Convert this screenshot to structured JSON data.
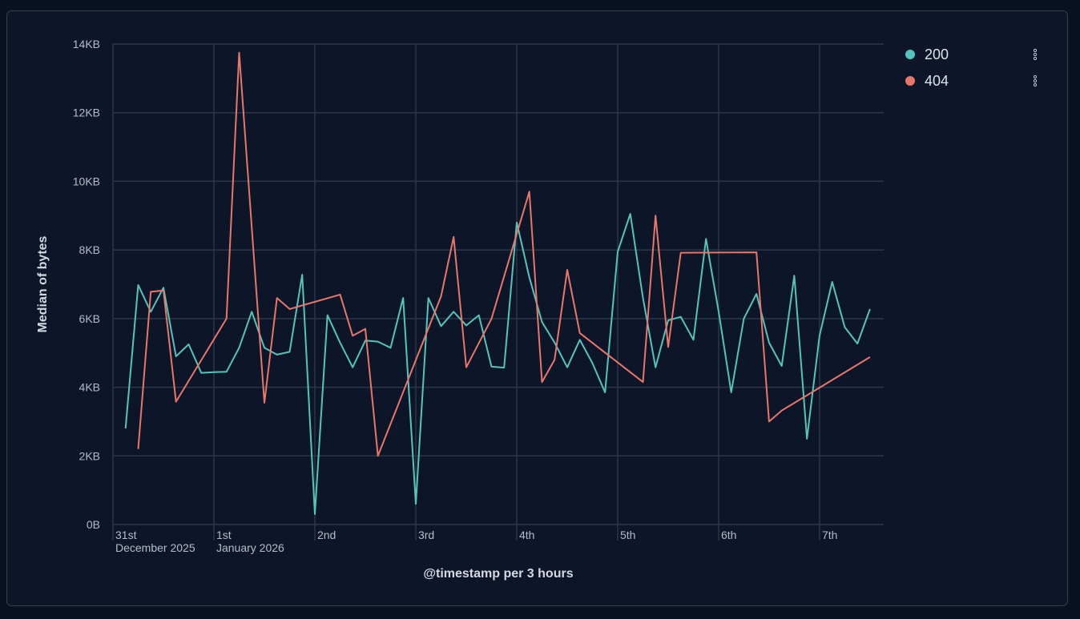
{
  "chart_data": {
    "type": "line",
    "title": "",
    "xlabel": "@timestamp per 3 hours",
    "ylabel": "Median of bytes",
    "y_unit": "KB",
    "ylim": [
      0,
      14
    ],
    "xlim": [
      "2025-12-31T00:00",
      "2026-01-07T15:15"
    ],
    "grid": true,
    "legend_position": "right",
    "y_ticks": [
      {
        "value": 0,
        "label": "0B"
      },
      {
        "value": 2,
        "label": "2KB"
      },
      {
        "value": 4,
        "label": "4KB"
      },
      {
        "value": 6,
        "label": "6KB"
      },
      {
        "value": 8,
        "label": "8KB"
      },
      {
        "value": 10,
        "label": "10KB"
      },
      {
        "value": 12,
        "label": "12KB"
      },
      {
        "value": 14,
        "label": "14KB"
      }
    ],
    "x_ticks": [
      {
        "value": "2025-12-31T00:00",
        "label": "31st",
        "sublabel": "December 2025"
      },
      {
        "value": "2026-01-01T00:00",
        "label": "1st",
        "sublabel": "January 2026"
      },
      {
        "value": "2026-01-02T00:00",
        "label": "2nd"
      },
      {
        "value": "2026-01-03T00:00",
        "label": "3rd"
      },
      {
        "value": "2026-01-04T00:00",
        "label": "4th"
      },
      {
        "value": "2026-01-05T00:00",
        "label": "5th"
      },
      {
        "value": "2026-01-06T00:00",
        "label": "6th"
      },
      {
        "value": "2026-01-07T00:00",
        "label": "7th"
      }
    ],
    "series": [
      {
        "name": "200",
        "color": "#54c4bd",
        "points": [
          [
            "2025-12-31T03:00",
            2.8
          ],
          [
            "2025-12-31T06:00",
            6.98
          ],
          [
            "2025-12-31T09:00",
            6.2
          ],
          [
            "2025-12-31T12:00",
            6.9
          ],
          [
            "2025-12-31T15:00",
            4.9
          ],
          [
            "2025-12-31T18:00",
            5.25
          ],
          [
            "2025-12-31T21:00",
            4.42
          ],
          [
            "2026-01-01T00:00",
            4.44
          ],
          [
            "2026-01-01T03:00",
            4.45
          ],
          [
            "2026-01-01T06:00",
            5.15
          ],
          [
            "2026-01-01T09:00",
            6.2
          ],
          [
            "2026-01-01T12:00",
            5.15
          ],
          [
            "2026-01-01T15:00",
            4.95
          ],
          [
            "2026-01-01T18:00",
            5.03
          ],
          [
            "2026-01-01T21:00",
            7.28
          ],
          [
            "2026-01-02T00:00",
            0.3
          ],
          [
            "2026-01-02T03:00",
            6.1
          ],
          [
            "2026-01-02T06:00",
            5.3
          ],
          [
            "2026-01-02T09:00",
            4.58
          ],
          [
            "2026-01-02T12:00",
            5.36
          ],
          [
            "2026-01-02T15:00",
            5.33
          ],
          [
            "2026-01-02T18:00",
            5.15
          ],
          [
            "2026-01-02T21:00",
            6.6
          ],
          [
            "2026-01-03T00:00",
            0.6
          ],
          [
            "2026-01-03T03:00",
            6.6
          ],
          [
            "2026-01-03T06:00",
            5.78
          ],
          [
            "2026-01-03T09:00",
            6.2
          ],
          [
            "2026-01-03T12:00",
            5.8
          ],
          [
            "2026-01-03T15:00",
            6.1
          ],
          [
            "2026-01-03T18:00",
            4.6
          ],
          [
            "2026-01-03T21:00",
            4.57
          ],
          [
            "2026-01-04T00:00",
            8.8
          ],
          [
            "2026-01-04T03:00",
            7.2
          ],
          [
            "2026-01-04T06:00",
            5.9
          ],
          [
            "2026-01-04T09:00",
            5.3
          ],
          [
            "2026-01-04T12:00",
            4.58
          ],
          [
            "2026-01-04T15:00",
            5.38
          ],
          [
            "2026-01-04T18:00",
            4.7
          ],
          [
            "2026-01-04T21:00",
            3.85
          ],
          [
            "2026-01-05T00:00",
            7.95
          ],
          [
            "2026-01-05T03:00",
            9.05
          ],
          [
            "2026-01-05T06:00",
            6.6
          ],
          [
            "2026-01-05T09:00",
            4.58
          ],
          [
            "2026-01-05T12:00",
            5.95
          ],
          [
            "2026-01-05T15:00",
            6.05
          ],
          [
            "2026-01-05T18:00",
            5.38
          ],
          [
            "2026-01-05T21:00",
            8.32
          ],
          [
            "2026-01-06T00:00",
            6.2
          ],
          [
            "2026-01-06T03:00",
            3.85
          ],
          [
            "2026-01-06T06:00",
            6.0
          ],
          [
            "2026-01-06T09:00",
            6.72
          ],
          [
            "2026-01-06T12:00",
            5.3
          ],
          [
            "2026-01-06T15:00",
            4.62
          ],
          [
            "2026-01-06T18:00",
            7.25
          ],
          [
            "2026-01-06T21:00",
            2.5
          ],
          [
            "2026-01-07T00:00",
            5.5
          ],
          [
            "2026-01-07T03:00",
            7.07
          ],
          [
            "2026-01-07T06:00",
            5.75
          ],
          [
            "2026-01-07T09:00",
            5.27
          ],
          [
            "2026-01-07T12:00",
            6.28
          ]
        ]
      },
      {
        "name": "404",
        "color": "#e7776a",
        "points": [
          [
            "2025-12-31T06:00",
            2.2
          ],
          [
            "2025-12-31T09:00",
            6.78
          ],
          [
            "2025-12-31T12:00",
            6.82
          ],
          [
            "2025-12-31T15:00",
            3.58
          ],
          [
            "2026-01-01T03:00",
            6.0
          ],
          [
            "2026-01-01T06:00",
            13.75
          ],
          [
            "2026-01-01T12:00",
            3.55
          ],
          [
            "2026-01-01T15:00",
            6.6
          ],
          [
            "2026-01-01T18:00",
            6.28
          ],
          [
            "2026-01-02T06:00",
            6.7
          ],
          [
            "2026-01-02T09:00",
            5.5
          ],
          [
            "2026-01-02T12:00",
            5.7
          ],
          [
            "2026-01-02T15:00",
            2.0
          ],
          [
            "2026-01-03T06:00",
            6.65
          ],
          [
            "2026-01-03T09:00",
            8.38
          ],
          [
            "2026-01-03T12:00",
            4.58
          ],
          [
            "2026-01-03T18:00",
            6.0
          ],
          [
            "2026-01-04T03:00",
            9.7
          ],
          [
            "2026-01-04T06:00",
            4.15
          ],
          [
            "2026-01-04T09:00",
            4.8
          ],
          [
            "2026-01-04T12:00",
            7.42
          ],
          [
            "2026-01-04T15:00",
            5.58
          ],
          [
            "2026-01-05T06:00",
            4.15
          ],
          [
            "2026-01-05T09:00",
            9.0
          ],
          [
            "2026-01-05T12:00",
            5.17
          ],
          [
            "2026-01-05T15:00",
            7.92
          ],
          [
            "2026-01-06T09:00",
            7.93
          ],
          [
            "2026-01-06T12:00",
            3.0
          ],
          [
            "2026-01-06T15:00",
            3.32
          ],
          [
            "2026-01-07T12:00",
            4.88
          ]
        ]
      }
    ]
  },
  "colors": {
    "background": "#0a1120",
    "panel": "#0d1628",
    "grid": "#2b3648",
    "text": "#c5cbd6"
  },
  "legend": {
    "menu_icon": "vertical-ellipsis-icon"
  }
}
